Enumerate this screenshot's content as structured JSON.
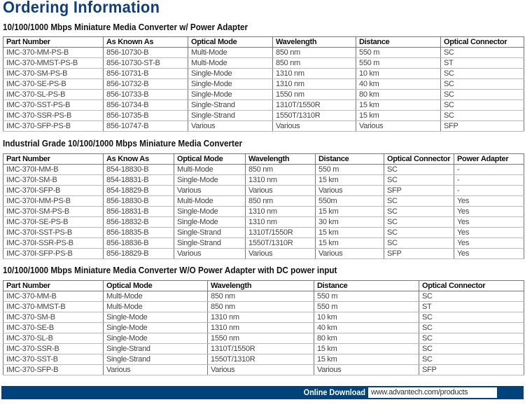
{
  "title": "Ordering Information",
  "tables": [
    {
      "heading": "10/100/1000 Mbps Miniature Media Converter w/ Power Adapter",
      "columns": [
        "Part Number",
        "As Known As",
        "Optical Mode",
        "Wavelength",
        "Distance",
        "Optical Connector"
      ],
      "rows": [
        [
          "IMC-370-MM-PS-B",
          "856-10730-B",
          "Multi-Mode",
          "850 nm",
          "550 m",
          "SC"
        ],
        [
          "IMC-370-MMST-PS-B",
          "856-10730-ST-B",
          "Multi-Mode",
          "850 nm",
          "550 m",
          "ST"
        ],
        [
          "IMC-370-SM-PS-B",
          "856-10731-B",
          "Single-Mode",
          "1310 nm",
          "10 km",
          "SC"
        ],
        [
          "IMC-370-SE-PS-B",
          "856-10732-B",
          "Single-Mode",
          "1310 nm",
          "40 km",
          "SC"
        ],
        [
          "IMC-370-SL-PS-B",
          "856-10733-B",
          "Single-Mode",
          "1550 nm",
          "80 km",
          "SC"
        ],
        [
          "IMC-370-SST-PS-B",
          "856-10734-B",
          "Single-Strand",
          "1310T/1550R",
          "15 km",
          "SC"
        ],
        [
          "IMC-370-SSR-PS-B",
          "856-10735-B",
          "Single-Strand",
          "1550T/1310R",
          "15 km",
          "SC"
        ],
        [
          "IMC-370-SFP-PS-B",
          "856-10747-B",
          "Various",
          "Various",
          "Various",
          "SFP"
        ]
      ]
    },
    {
      "heading": "Industrial Grade 10/100/1000 Mbps Miniature Media Converter",
      "columns": [
        "Part Number",
        "As Know As",
        "Optical Mode",
        "Wavelength",
        "Distance",
        "Optical Connector",
        "Power Adapter"
      ],
      "rows": [
        [
          "IMC-370I-MM-B",
          "854-18830-B",
          "Multi-Mode",
          "850 nm",
          "550 m",
          "SC",
          "-"
        ],
        [
          "IMC-370I-SM-B",
          "854-18831-B",
          "Single-Mode",
          "1310 nm",
          "15 km",
          "SC",
          "-"
        ],
        [
          "IMC-370I-SFP-B",
          "854-18829-B",
          "Various",
          "Various",
          "Various",
          "SFP",
          "-"
        ],
        [
          "IMC-370I-MM-PS-B",
          "856-18830-B",
          "Multi-Mode",
          "850 nm",
          "550m",
          "SC",
          "Yes"
        ],
        [
          "IMC-370I-SM-PS-B",
          "856-18831-B",
          "Single-Mode",
          "1310 nm",
          "15 km",
          "SC",
          "Yes"
        ],
        [
          "IMC-370I-SE-PS-B",
          "856-18832-B",
          "Single-Mode",
          "1310 nm",
          "30 km",
          "SC",
          "Yes"
        ],
        [
          "IMC-370I-SST-PS-B",
          "856-18835-B",
          "Single-Strand",
          "1310T/1550R",
          "15 km",
          "SC",
          "Yes"
        ],
        [
          "IMC-370I-SSR-PS-B",
          "856-18836-B",
          "Single-Strand",
          "1550T/1310R",
          "15 km",
          "SC",
          "Yes"
        ],
        [
          "IMC-370I-SFP-PS-B",
          "856-18829-B",
          "Various",
          "Various",
          "Various",
          "SFP",
          "Yes"
        ]
      ]
    },
    {
      "heading": "10/100/1000 Mbps Miniature Media Converter W/O Power Adapter with DC power input",
      "columns": [
        "Part Number",
        "Optical Mode",
        "Wavelength",
        "Distance",
        "Optical Connector"
      ],
      "rows": [
        [
          "IMC-370-MM-B",
          "Multi-Mode",
          "850 nm",
          "550 m",
          "SC"
        ],
        [
          "IMC-370-MMST-B",
          "Multi-Mode",
          "850 nm",
          "550 m",
          "ST"
        ],
        [
          "IMC-370-SM-B",
          "Single-Mode",
          "1310 nm",
          "10 km",
          "SC"
        ],
        [
          "IMC-370-SE-B",
          "Single-Mode",
          "1310 nm",
          "40 km",
          "SC"
        ],
        [
          "IMC-370-SL-B",
          "Single-Mode",
          "1550 nm",
          "80 km",
          "SC"
        ],
        [
          "IMC-370-SSR-B",
          "Single-Strand",
          "1310T/1550R",
          "15 km",
          "SC"
        ],
        [
          "IMC-370-SST-B",
          "Single-Strand",
          "1550T/1310R",
          "15 km",
          "SC"
        ],
        [
          "IMC-370-SFP-B",
          "Various",
          "Various",
          "Various",
          "SFP"
        ]
      ]
    }
  ],
  "footer": {
    "label": "Online Download",
    "url": "www.advantech.com/products"
  },
  "colors": {
    "brand": "#00427a"
  }
}
